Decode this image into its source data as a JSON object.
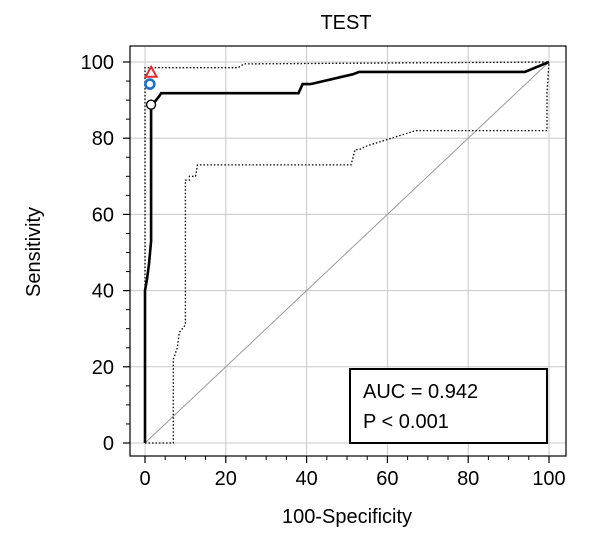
{
  "chart_data": {
    "type": "line",
    "title": "TEST",
    "xlabel": "100-Specificity",
    "ylabel": "Sensitivity",
    "xlim": [
      0,
      100
    ],
    "ylim": [
      0,
      100
    ],
    "xticks": [
      0,
      20,
      40,
      60,
      80,
      100
    ],
    "yticks": [
      0,
      20,
      40,
      60,
      80,
      100
    ],
    "grid": true,
    "series": [
      {
        "role": "roc-curve",
        "style": "solid",
        "color": "#000000",
        "x": [
          0,
          0,
          0.5,
          1.0,
          1.5,
          1.5,
          2.0,
          3.5,
          4.0,
          38.0,
          39.0,
          41.0,
          51.5,
          53.0,
          94.0,
          100
        ],
        "y": [
          0,
          40.0,
          43.0,
          47.0,
          53.0,
          88.0,
          89.0,
          91.0,
          91.8,
          91.8,
          94.2,
          94.2,
          96.8,
          97.4,
          97.4,
          100
        ]
      },
      {
        "role": "upper-confidence-bound",
        "style": "dotted",
        "color": "#000000",
        "x": [
          0,
          0,
          23.0,
          24.5,
          100
        ],
        "y": [
          0,
          98.5,
          98.5,
          99.5,
          100
        ]
      },
      {
        "role": "lower-confidence-bound",
        "style": "dotted",
        "color": "#000000",
        "x": [
          0,
          7.0,
          7.0,
          8.0,
          8.5,
          10.0,
          10.0,
          11.0,
          11.0,
          12.5,
          13.0,
          15.0,
          51.0,
          52.0,
          53.0,
          55.0,
          67.0,
          99.5,
          99.5,
          100
        ],
        "y": [
          0,
          0,
          22.0,
          25.0,
          29.0,
          31.0,
          69.0,
          69.0,
          70.0,
          70.0,
          73.0,
          73.0,
          73.0,
          77.0,
          77.0,
          78.0,
          82.0,
          82.0,
          92.0,
          100
        ]
      },
      {
        "role": "reference-diagonal",
        "style": "thin",
        "color": "#9a9a9a",
        "x": [
          0,
          100
        ],
        "y": [
          0,
          100
        ]
      }
    ],
    "markers": [
      {
        "shape": "triangle",
        "color": "#e8262b",
        "x": 1.5,
        "y": 97.3
      },
      {
        "shape": "circle",
        "color": "#1f6fd1",
        "x": 1.2,
        "y": 94.2
      },
      {
        "shape": "circle",
        "color": "#000000",
        "x": 1.5,
        "y": 88.8
      }
    ],
    "annotation": {
      "auc_text": "AUC = 0.942",
      "p_text": "P < 0.001"
    }
  }
}
